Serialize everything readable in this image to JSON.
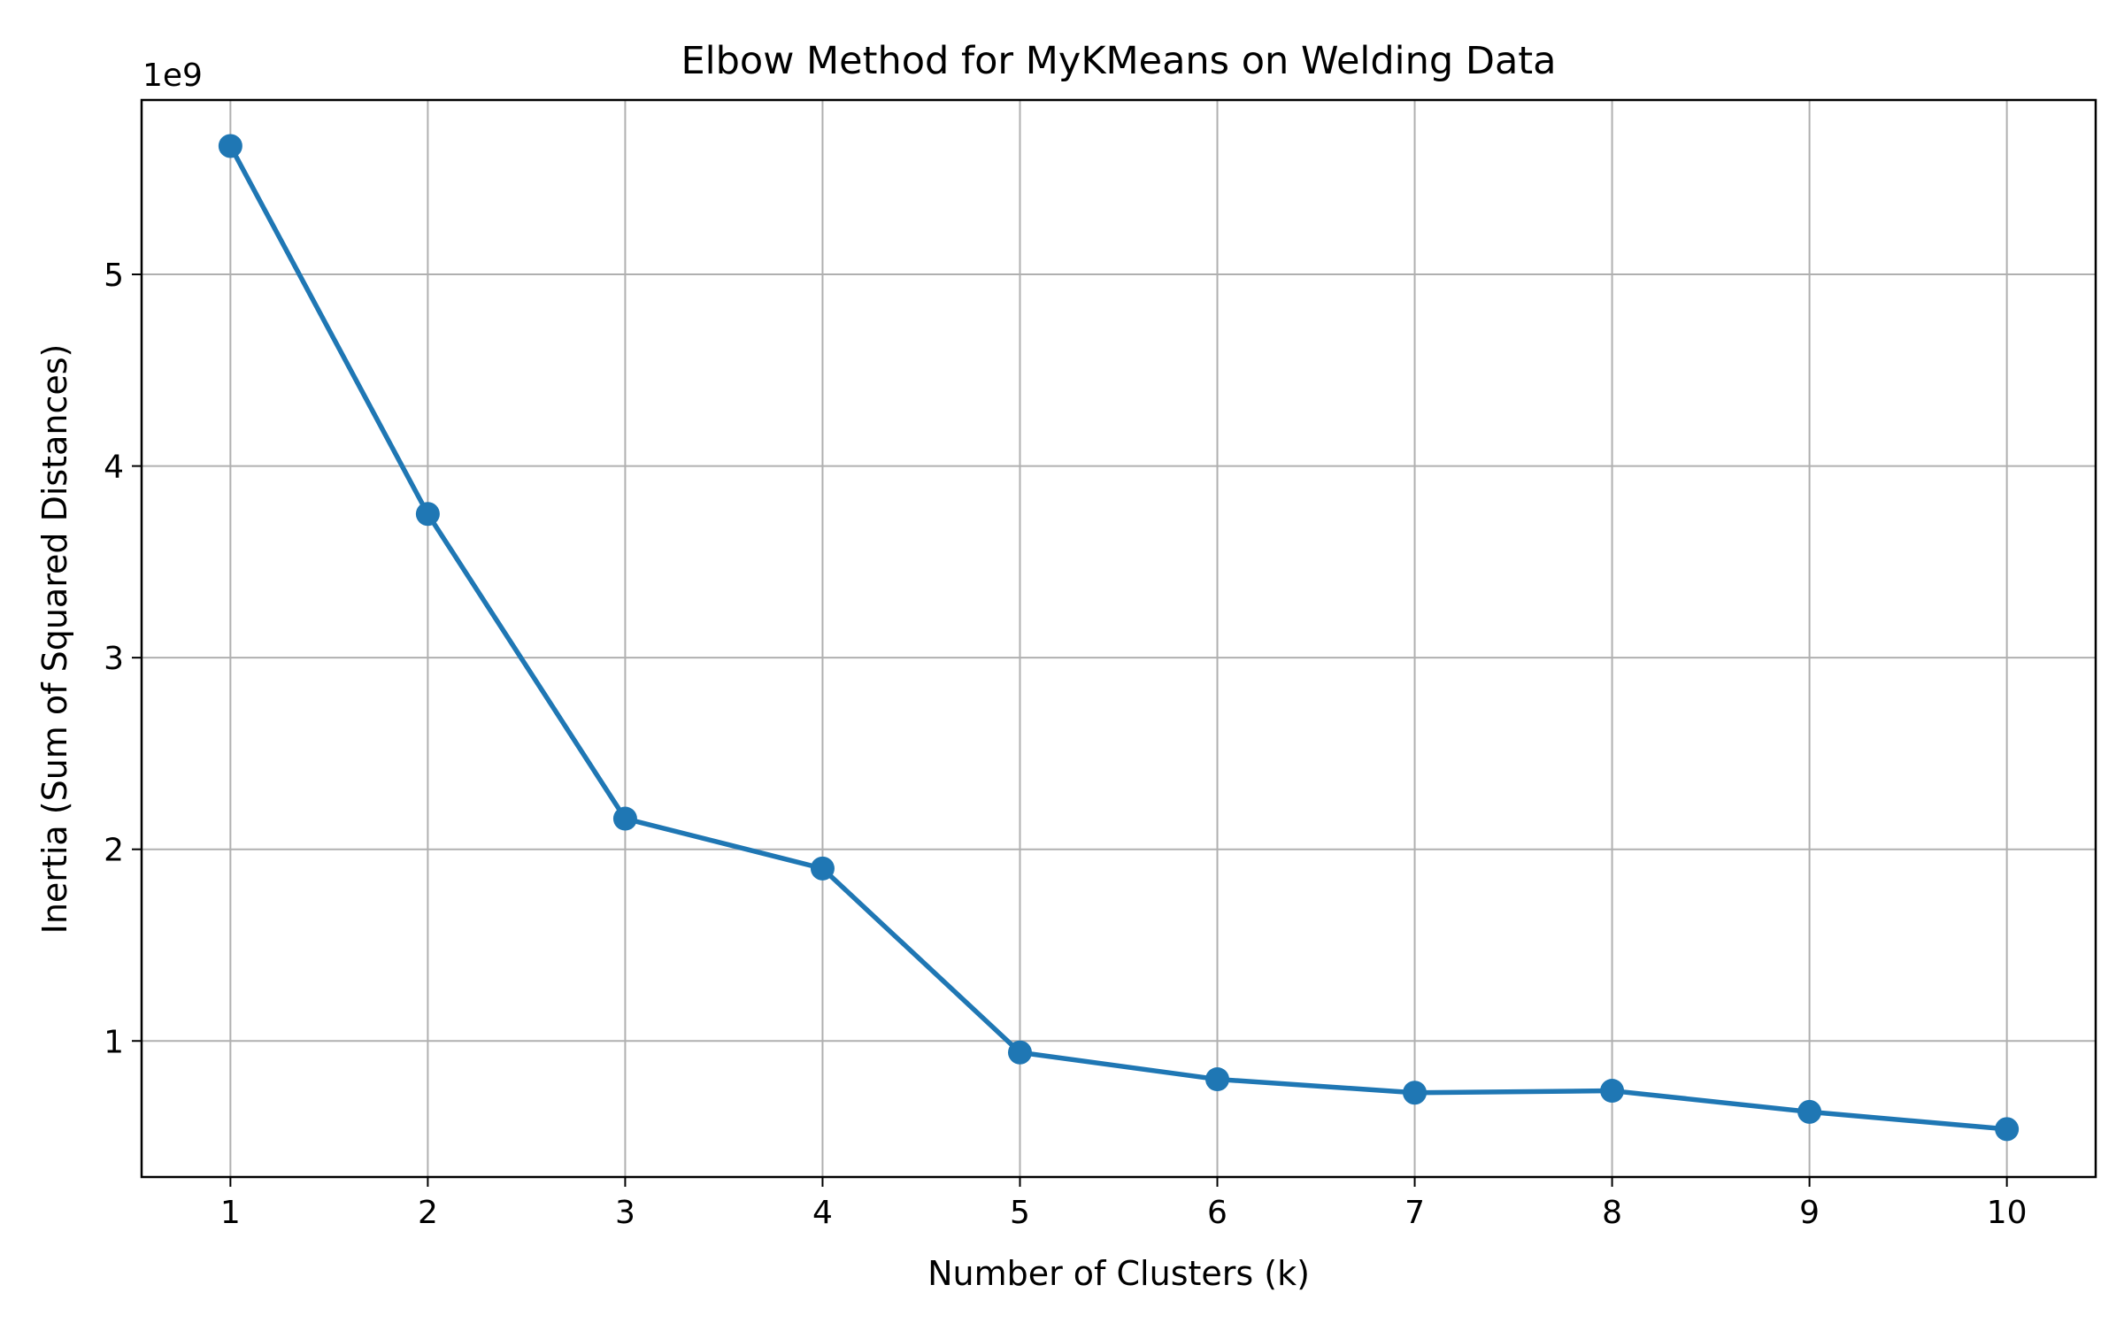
{
  "chart_data": {
    "type": "line",
    "title": "Elbow Method for MyKMeans on Welding Data",
    "xlabel": "Number of Clusters (k)",
    "ylabel": "Inertia (Sum of Squared Distances)",
    "y_offset_label": "1e9",
    "x": [
      1,
      2,
      3,
      4,
      5,
      6,
      7,
      8,
      9,
      10
    ],
    "series": [
      {
        "values": [
          5.67,
          3.75,
          2.16,
          1.9,
          0.94,
          0.8,
          0.73,
          0.74,
          0.63,
          0.54
        ],
        "color": "#1f77b4",
        "marker": "circle"
      }
    ],
    "x_ticks": [
      "1",
      "2",
      "3",
      "4",
      "5",
      "6",
      "7",
      "8",
      "9",
      "10"
    ],
    "y_ticks": [
      1,
      2,
      3,
      4,
      5
    ],
    "y_tick_labels": [
      "1",
      "2",
      "3",
      "4",
      "5"
    ],
    "xlim": [
      0.55,
      10.45
    ],
    "ylim": [
      0.29,
      5.91
    ],
    "grid": true,
    "grid_color": "#b0b0b0"
  }
}
